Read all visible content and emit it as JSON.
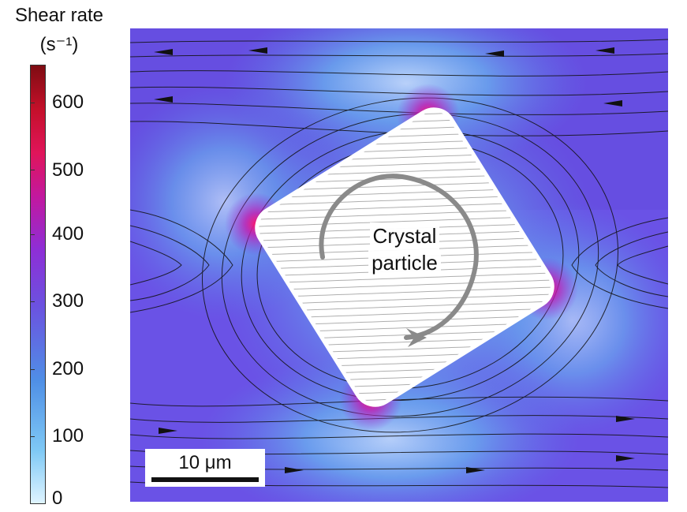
{
  "colorbar": {
    "title_line1": "Shear rate",
    "title_line2": "(s⁻¹)",
    "min": 0,
    "max": 650,
    "ticks": [
      "600",
      "500",
      "400",
      "300",
      "200",
      "100",
      "0"
    ],
    "tick_values": [
      600,
      500,
      400,
      300,
      200,
      100,
      0
    ]
  },
  "particle": {
    "label_line1": "Crystal",
    "label_line2": "particle"
  },
  "scalebar": {
    "label": "10 μm"
  },
  "colors": {
    "background_flow": "#6a52e6",
    "low_shear": "#dff4ff",
    "high_shear": "#e0155a",
    "particle_fill": "#ffffff",
    "rotation_arrow": "#8a8a8a"
  }
}
